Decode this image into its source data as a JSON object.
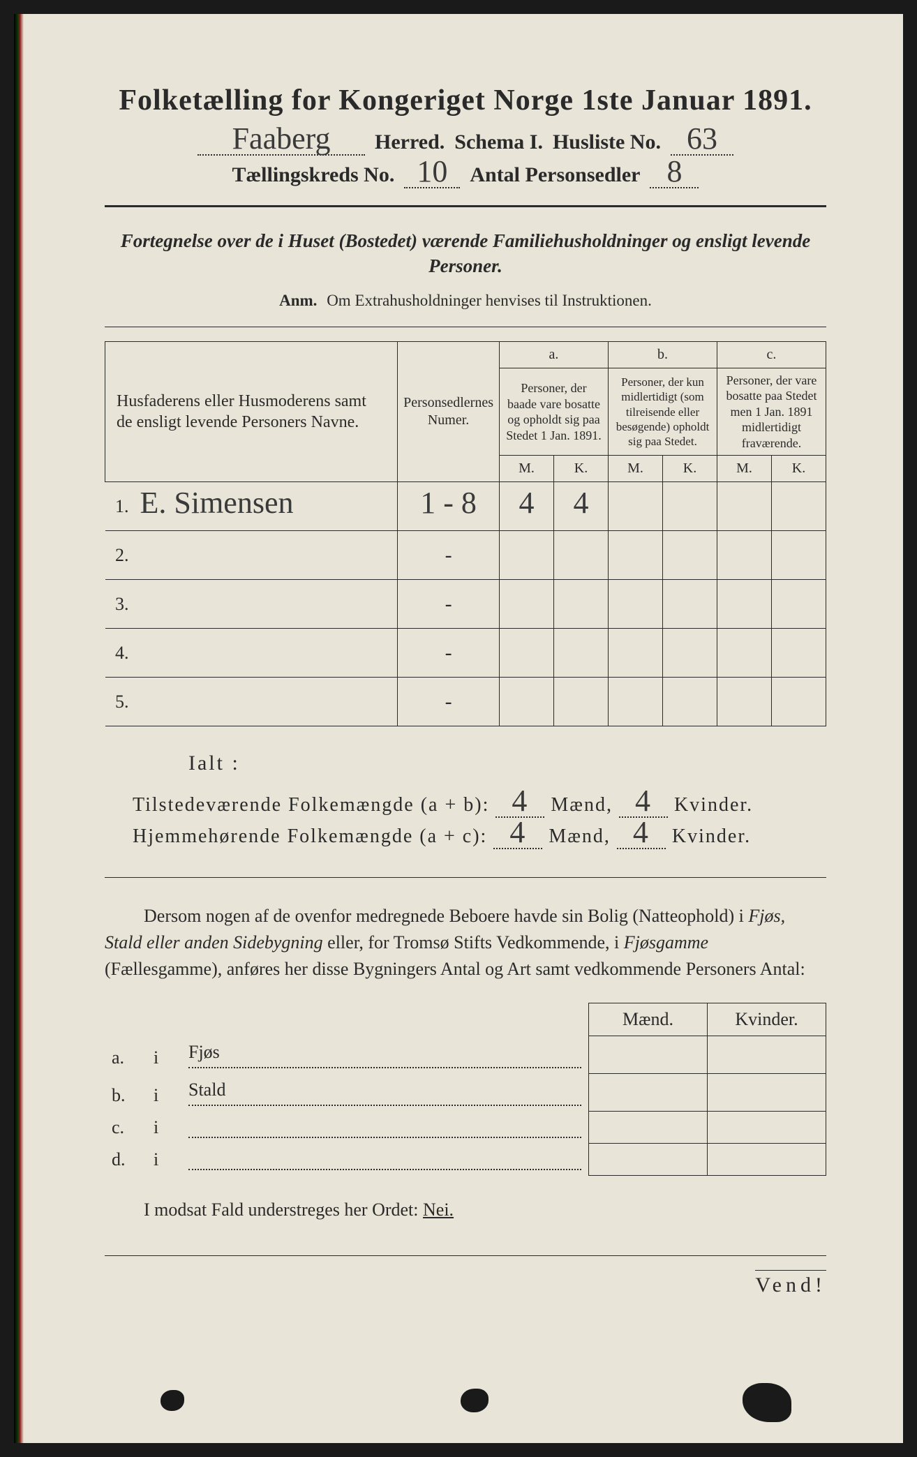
{
  "title": "Folketælling for Kongeriget Norge 1ste Januar 1891.",
  "header": {
    "herred_value": "Faaberg",
    "herred_label": "Herred.",
    "schema_label": "Schema I.",
    "husliste_label": "Husliste No.",
    "husliste_value": "63",
    "kreds_label": "Tællingskreds No.",
    "kreds_value": "10",
    "antal_label": "Antal Personsedler",
    "antal_value": "8"
  },
  "intro": "Fortegnelse over de i Huset (Bostedet) værende Familiehusholdninger og ensligt levende Personer.",
  "anm_label": "Anm.",
  "anm_text": "Om Extrahusholdninger henvises til Instruktionen.",
  "table": {
    "col_name": "Husfaderens eller Husmoderens samt de ensligt levende Personers Navne.",
    "col_numer": "Personsedlernes Numer.",
    "col_a_label": "a.",
    "col_a_text": "Personer, der baade vare bosatte og opholdt sig paa Stedet 1 Jan. 1891.",
    "col_b_label": "b.",
    "col_b_text": "Personer, der kun midlertidigt (som tilreisende eller besøgende) opholdt sig paa Stedet.",
    "col_c_label": "c.",
    "col_c_text": "Personer, der vare bosatte paa Stedet men 1 Jan. 1891 midlertidigt fraværende.",
    "m": "M.",
    "k": "K.",
    "rows": [
      {
        "n": "1.",
        "name": "E. Simensen",
        "numer": "1 - 8",
        "am": "4",
        "ak": "4",
        "bm": "",
        "bk": "",
        "cm": "",
        "ck": ""
      },
      {
        "n": "2.",
        "name": "",
        "numer": "-",
        "am": "",
        "ak": "",
        "bm": "",
        "bk": "",
        "cm": "",
        "ck": ""
      },
      {
        "n": "3.",
        "name": "",
        "numer": "-",
        "am": "",
        "ak": "",
        "bm": "",
        "bk": "",
        "cm": "",
        "ck": ""
      },
      {
        "n": "4.",
        "name": "",
        "numer": "-",
        "am": "",
        "ak": "",
        "bm": "",
        "bk": "",
        "cm": "",
        "ck": ""
      },
      {
        "n": "5.",
        "name": "",
        "numer": "-",
        "am": "",
        "ak": "",
        "bm": "",
        "bk": "",
        "cm": "",
        "ck": ""
      }
    ]
  },
  "ialt": "Ialt :",
  "totals": {
    "line1_label": "Tilstedeværende Folkemængde (a + b):",
    "line1_m": "4",
    "line1_k": "4",
    "line2_label": "Hjemmehørende Folkemængde (a + c):",
    "line2_m": "4",
    "line2_k": "4",
    "maend": "Mænd,",
    "kvinder": "Kvinder."
  },
  "para": {
    "p1": "Dersom nogen af de ovenfor medregnede Beboere havde sin Bolig (Natteophold) i ",
    "it1": "Fjøs, Stald eller anden Sidebygning",
    "p2": " eller, for Tromsø Stifts Vedkommende, i ",
    "it2": "Fjøsgamme",
    "p3": " (Fællesgamme), anføres her disse Bygningers Antal og Art samt vedkommende Personers Antal:"
  },
  "sub": {
    "maend": "Mænd.",
    "kvinder": "Kvinder.",
    "rows": [
      {
        "l": "a.",
        "i": "i",
        "t": "Fjøs"
      },
      {
        "l": "b.",
        "i": "i",
        "t": "Stald"
      },
      {
        "l": "c.",
        "i": "i",
        "t": ""
      },
      {
        "l": "d.",
        "i": "i",
        "t": ""
      }
    ]
  },
  "nei_line_1": "I modsat Fald understreges her Ordet: ",
  "nei_word": "Nei.",
  "vend": "Vend!",
  "colors": {
    "paper": "#e8e4d8",
    "ink": "#2a2a2a",
    "background": "#1a1a1a"
  }
}
